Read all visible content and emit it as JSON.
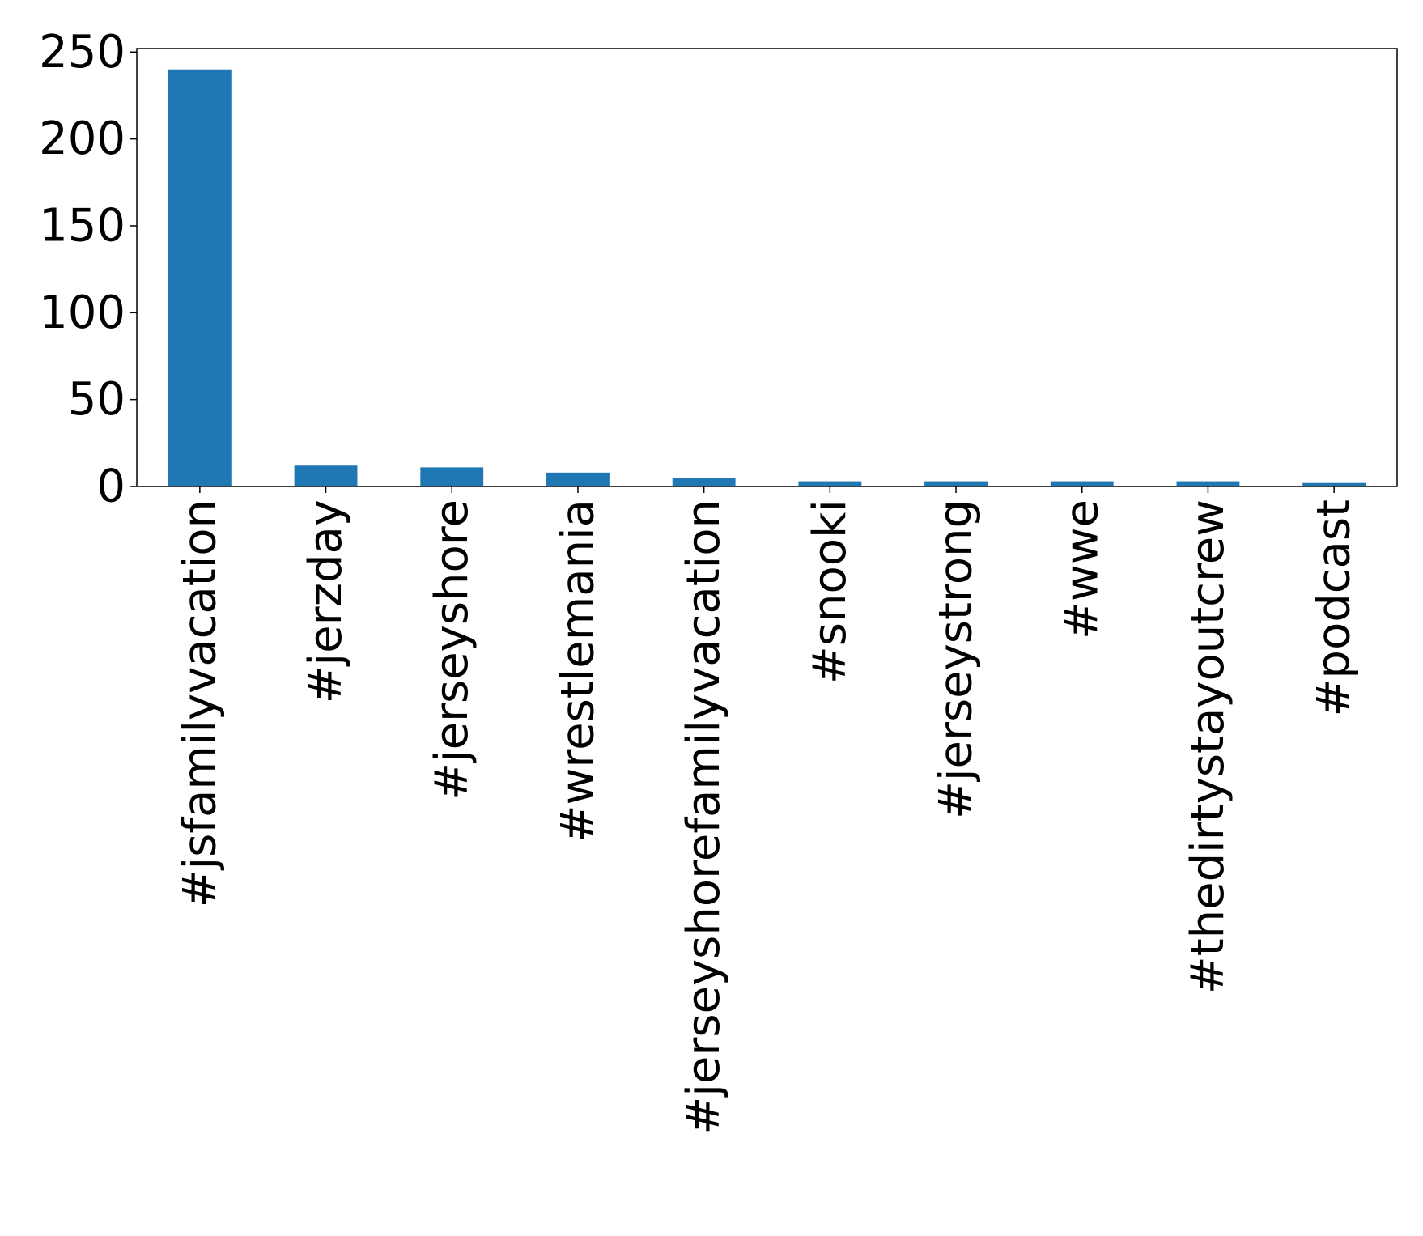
{
  "chart_data": {
    "type": "bar",
    "title": "",
    "xlabel": "",
    "ylabel": "",
    "categories": [
      "#jsfamilyvacation",
      "#jerzday",
      "#jerseyshore",
      "#wrestlemania",
      "#jerseyshorefamilyvacation",
      "#snooki",
      "#jerseystrong",
      "#wwe",
      "#thedirtystayoutcrew",
      "#podcast"
    ],
    "values": [
      240,
      12,
      11,
      8,
      5,
      3,
      3,
      3,
      3,
      2
    ],
    "ylim": [
      0,
      252
    ],
    "yticks": [
      "0",
      "50",
      "100",
      "150",
      "200",
      "250"
    ],
    "grid": false,
    "legend": "none",
    "colors": {
      "bar": "#1f77b4",
      "axis": "#000000",
      "background": "#ffffff"
    }
  }
}
